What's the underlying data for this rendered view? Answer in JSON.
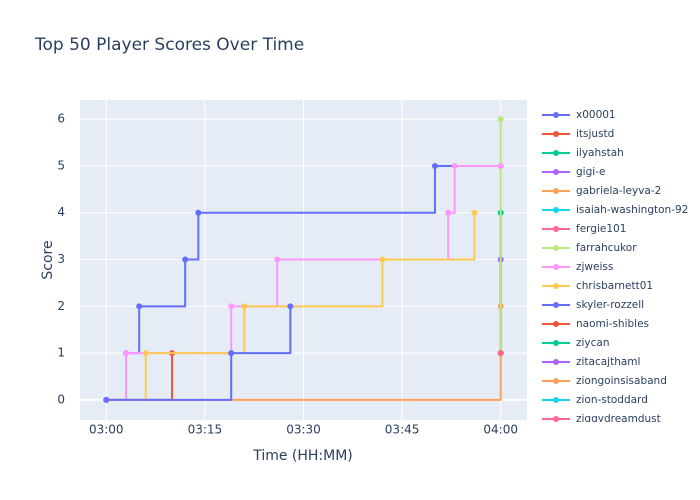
{
  "chart_data": {
    "type": "line",
    "title": "Top 50 Player Scores Over Time",
    "x_label": "Time (HH:MM)",
    "y_label": "Score",
    "line_shape": "hv",
    "grid": true,
    "xlim": [
      "02:56",
      "04:04"
    ],
    "xticks": [
      "03:00",
      "03:15",
      "03:30",
      "03:45",
      "04:00"
    ],
    "ylim": [
      -0.43,
      6.41
    ],
    "yticks": [
      0,
      1,
      2,
      3,
      4,
      5,
      6
    ],
    "series": [
      {
        "name": "x00001",
        "color": "#636efa",
        "x": [
          "03:00",
          "03:03",
          "03:05",
          "03:12",
          "03:14",
          "03:50",
          "04:00"
        ],
        "values": [
          0,
          1,
          2,
          3,
          4,
          5,
          5
        ]
      },
      {
        "name": "itsjustd",
        "color": "#EF553B",
        "x": [
          "03:00",
          "03:10"
        ],
        "values": [
          0,
          1
        ]
      },
      {
        "name": "ilyahstah",
        "color": "#00cc96",
        "x": [
          "04:00",
          "04:00"
        ],
        "values": [
          1,
          4
        ]
      },
      {
        "name": "gigi-e",
        "color": "#ab63fa",
        "x": [
          "04:00",
          "04:00"
        ],
        "values": [
          1,
          3
        ]
      },
      {
        "name": "gabriela-leyva-2",
        "color": "#FFA15A",
        "x": [
          "03:00",
          "04:00",
          "04:00"
        ],
        "values": [
          0,
          1,
          2
        ]
      },
      {
        "name": "isaiah-washington-92",
        "color": "#19d3f3",
        "x": [
          "04:00"
        ],
        "values": [
          1
        ]
      },
      {
        "name": "fergie101",
        "color": "#FF6692",
        "x": [
          "04:00"
        ],
        "values": [
          1
        ]
      },
      {
        "name": "farrahcukor",
        "color": "#B6E880",
        "x": [
          "04:00",
          "04:00",
          "04:00"
        ],
        "values": [
          1,
          5,
          6
        ]
      },
      {
        "name": "zjweiss",
        "color": "#FF97FF",
        "x": [
          "03:00",
          "03:03",
          "03:19",
          "03:26",
          "03:52",
          "03:53",
          "04:00"
        ],
        "values": [
          0,
          1,
          2,
          3,
          4,
          5,
          5
        ]
      },
      {
        "name": "chrisbarnett01",
        "color": "#FECB52",
        "x": [
          "03:00",
          "03:06",
          "03:21",
          "03:42",
          "03:56"
        ],
        "values": [
          0,
          1,
          2,
          3,
          4
        ]
      },
      {
        "name": "skyler-rozzell",
        "color": "#636efa",
        "x": [
          "03:00",
          "03:19",
          "03:28"
        ],
        "values": [
          0,
          1,
          2
        ]
      },
      {
        "name": "naomi-shibles",
        "color": "#EF553B",
        "x": [
          "04:00"
        ],
        "values": [
          1
        ]
      },
      {
        "name": "ziycan",
        "color": "#00cc96",
        "x": [
          "04:00"
        ],
        "values": [
          1
        ]
      },
      {
        "name": "zitacajthaml",
        "color": "#ab63fa",
        "x": [
          "04:00"
        ],
        "values": [
          1
        ]
      },
      {
        "name": "ziongoinsisaband",
        "color": "#FFA15A",
        "x": [
          "04:00"
        ],
        "values": [
          1
        ]
      },
      {
        "name": "zion-stoddard",
        "color": "#19d3f3",
        "x": [
          "04:00"
        ],
        "values": [
          1
        ]
      },
      {
        "name": "ziggydreamdust",
        "color": "#FF6692",
        "x": [
          "04:00"
        ],
        "values": [
          1
        ]
      }
    ]
  }
}
